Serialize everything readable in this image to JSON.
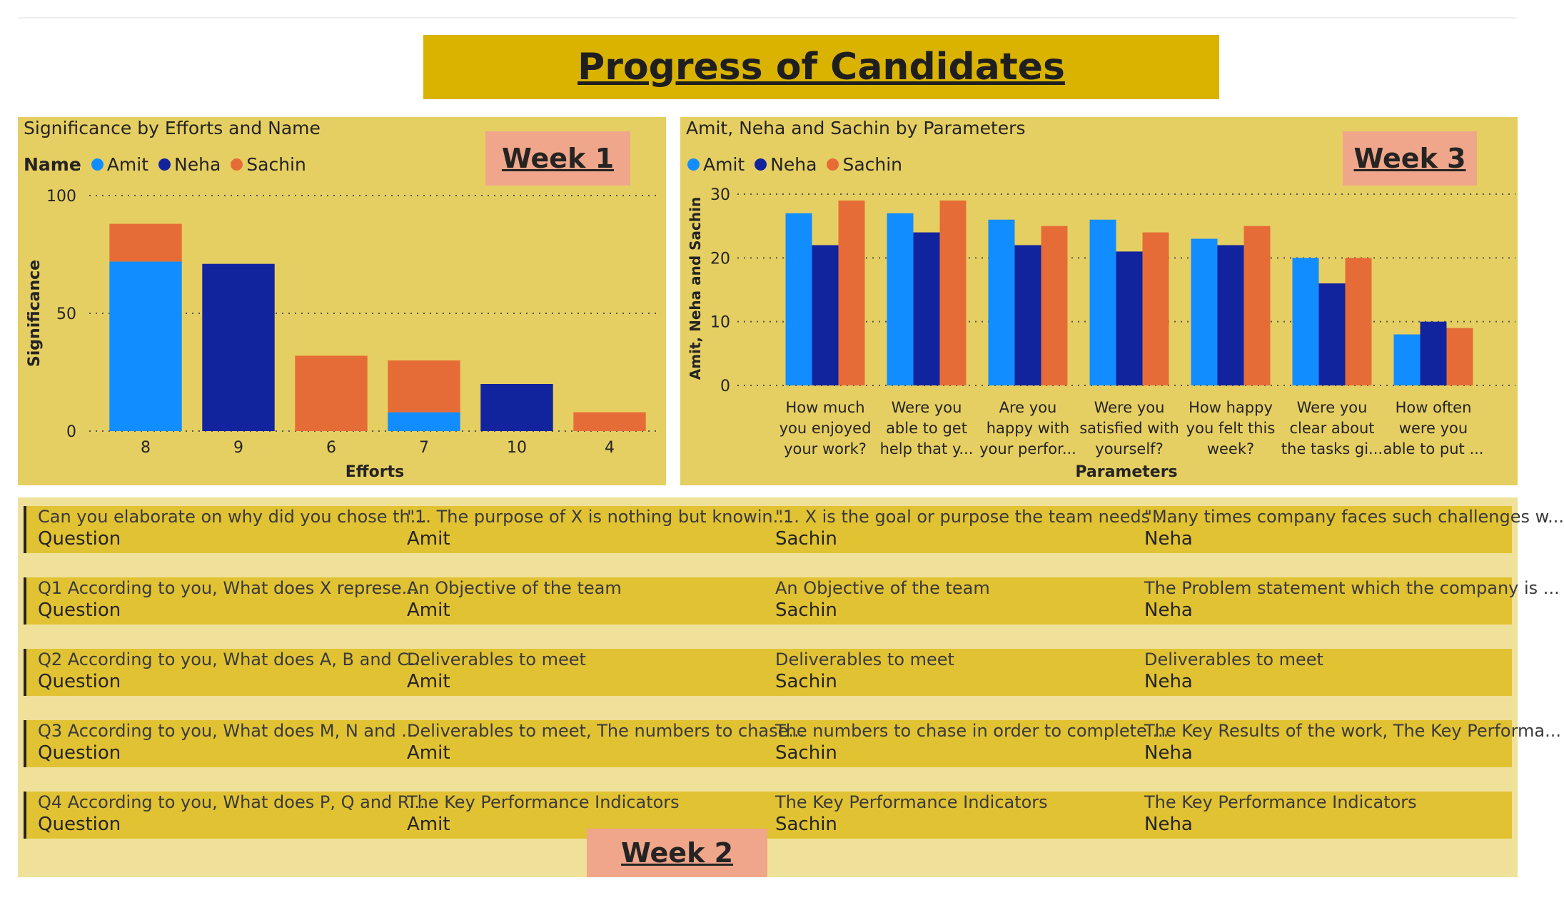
{
  "page": {
    "title": "Progress of Candidates"
  },
  "colors": {
    "amit": "#118dff",
    "neha": "#12239e",
    "sachin": "#e66c37",
    "title_bg": "#d9b300",
    "panel_bg": "#e6cf62",
    "badge_bg": "#efa68a"
  },
  "week1": {
    "badge": "Week 1",
    "title": "Significance by Efforts and Name",
    "legend_title": "Name",
    "legend": [
      "Amit",
      "Neha",
      "Sachin"
    ]
  },
  "week3": {
    "badge": "Week 3",
    "title": "Amit, Neha and Sachin by Parameters",
    "legend": [
      "Amit",
      "Neha",
      "Sachin"
    ]
  },
  "week2": {
    "badge": "Week 2",
    "rows": [
      {
        "cells": [
          {
            "text": "Can you elaborate on why did you chose th...",
            "label": "Question"
          },
          {
            "text": "\"1. The purpose of X is nothing but knowin...",
            "label": "Amit"
          },
          {
            "text": "\"1. X is the goal or purpose the team needs ...",
            "label": "Sachin"
          },
          {
            "text": "\"Many times company faces such challenges w...",
            "label": "Neha"
          }
        ]
      },
      {
        "cells": [
          {
            "text": "Q1 According to you, What does X represe...",
            "label": "Question"
          },
          {
            "text": "An Objective of the team",
            "label": "Amit"
          },
          {
            "text": "An Objective of the team",
            "label": "Sachin"
          },
          {
            "text": "The Problem statement which the company is ...",
            "label": "Neha"
          }
        ]
      },
      {
        "cells": [
          {
            "text": "Q2 According to you, What does A, B and C...",
            "label": "Question"
          },
          {
            "text": "Deliverables to meet",
            "label": "Amit"
          },
          {
            "text": "Deliverables to meet",
            "label": "Sachin"
          },
          {
            "text": "Deliverables to meet",
            "label": "Neha"
          }
        ]
      },
      {
        "cells": [
          {
            "text": "Q3 According to you, What does M, N and ...",
            "label": "Question"
          },
          {
            "text": "Deliverables to meet, The numbers to chase...",
            "label": "Amit"
          },
          {
            "text": "The numbers to chase in order to complete ...",
            "label": "Sachin"
          },
          {
            "text": "The Key Results of the work, The Key Performa...",
            "label": "Neha"
          }
        ]
      },
      {
        "cells": [
          {
            "text": "Q4 According to you, What does P, Q and R...",
            "label": "Question"
          },
          {
            "text": "The Key Performance Indicators",
            "label": "Amit"
          },
          {
            "text": "The Key Performance Indicators",
            "label": "Sachin"
          },
          {
            "text": "The Key Performance Indicators",
            "label": "Neha"
          }
        ]
      }
    ]
  },
  "chart_data": [
    {
      "type": "bar",
      "stacked": true,
      "title": "Significance by Efforts and Name",
      "xlabel": "Efforts",
      "ylabel": "Significance",
      "categories": [
        "8",
        "9",
        "6",
        "7",
        "10",
        "4"
      ],
      "ylim": [
        0,
        100
      ],
      "yticks": [
        0,
        50,
        100
      ],
      "legend_title": "Name",
      "legend_position": "top-left",
      "grid": true,
      "series": [
        {
          "name": "Amit",
          "values": [
            72,
            0,
            0,
            8,
            0,
            0
          ]
        },
        {
          "name": "Neha",
          "values": [
            0,
            71,
            0,
            0,
            20,
            0
          ]
        },
        {
          "name": "Sachin",
          "values": [
            16,
            0,
            32,
            22,
            0,
            8
          ]
        }
      ]
    },
    {
      "type": "bar",
      "stacked": false,
      "title": "Amit, Neha and Sachin by Parameters",
      "xlabel": "Parameters",
      "ylabel": "Amit, Neha and Sachin",
      "categories": [
        [
          "How much",
          "you enjoyed",
          "your work?"
        ],
        [
          "Were you",
          "able to get",
          "help that y..."
        ],
        [
          "Are you",
          "happy with",
          "your perfor..."
        ],
        [
          "Were you",
          "satisfied with",
          "yourself?"
        ],
        [
          "How happy",
          "you felt this",
          "week?"
        ],
        [
          "Were you",
          "clear about",
          "the tasks gi..."
        ],
        [
          "How often",
          "were you",
          "able to put ..."
        ]
      ],
      "ylim": [
        0,
        30
      ],
      "yticks": [
        0,
        10,
        20,
        30
      ],
      "legend_position": "top-left",
      "grid": true,
      "series": [
        {
          "name": "Amit",
          "values": [
            27,
            27,
            26,
            26,
            23,
            20,
            8
          ]
        },
        {
          "name": "Neha",
          "values": [
            22,
            24,
            22,
            21,
            22,
            16,
            10
          ]
        },
        {
          "name": "Sachin",
          "values": [
            29,
            29,
            25,
            24,
            25,
            20,
            9
          ]
        }
      ]
    }
  ]
}
